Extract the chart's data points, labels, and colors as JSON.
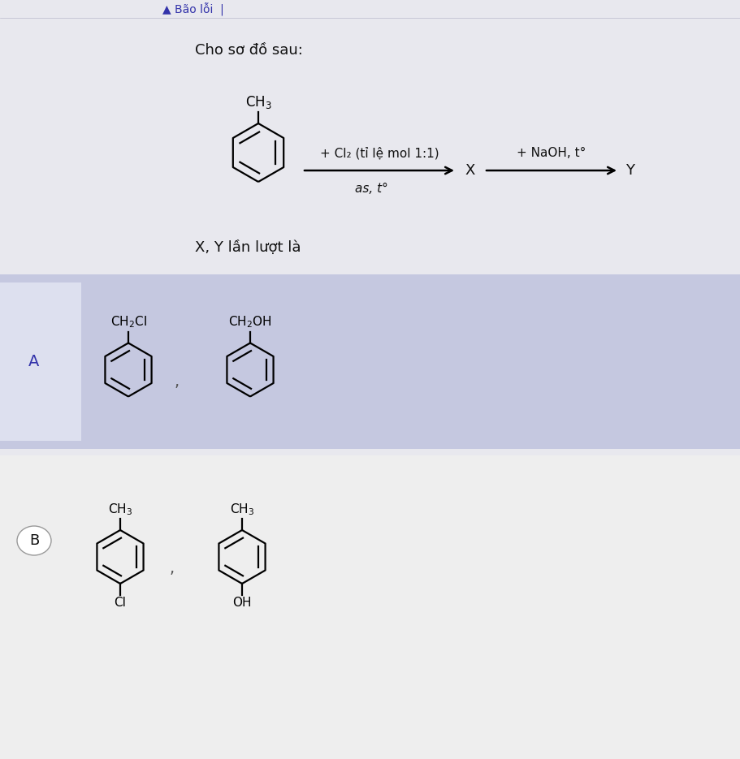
{
  "bg_main": "#e8e8ee",
  "bg_optA": "#c5c8e0",
  "bg_optB": "#eeeeee",
  "text_color": "#111111",
  "text_blue": "#3333aa",
  "arrow_color": "#111111",
  "header_text": "Bão lỗi",
  "intro_text": "Cho sơ đồ sau:",
  "question_text": "X, Y lần lượt là",
  "arrow1_top": "+ Cl₂ (tỉ lệ mol 1:1)",
  "arrow1_bot": "as, t°",
  "x_label": "X",
  "arrow2_top": "+ NaOH, t°",
  "y_label": "Y",
  "optA": "A",
  "optB": "B",
  "optA_x": "CH₂Cl",
  "optA_y": "CH₂OH",
  "optB_x_top": "CH₃",
  "optB_x_bot": "Cl",
  "optB_y_top": "CH₃",
  "optB_y_bot": "OH"
}
